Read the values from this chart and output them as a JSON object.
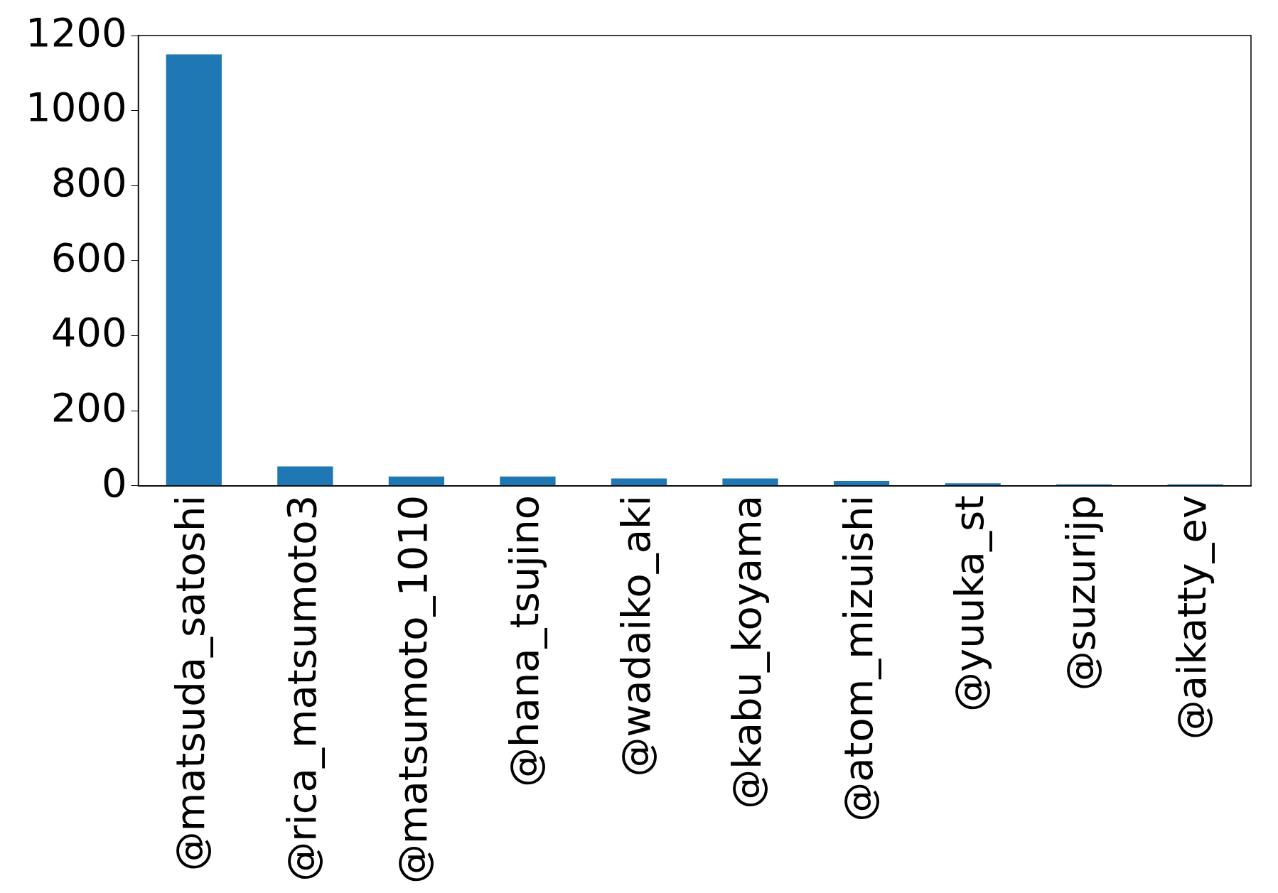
{
  "chart_data": {
    "type": "bar",
    "categories": [
      "@matsuda_satoshi",
      "@rica_matsumoto3",
      "@matsumoto_1010",
      "@hana_tsujino",
      "@wadaiko_aki",
      "@kabu_koyama",
      "@atom_mizuishi",
      "@yuuka_st",
      "@suzurijp",
      "@aikatty_ev"
    ],
    "values": [
      1150,
      52,
      25,
      25,
      20,
      20,
      13,
      7,
      4,
      4
    ],
    "color": "#1f77b4",
    "ylim": [
      0,
      1200
    ],
    "yticks": [
      0,
      200,
      400,
      600,
      800,
      1000,
      1200
    ],
    "grid": false,
    "legend": false
  }
}
